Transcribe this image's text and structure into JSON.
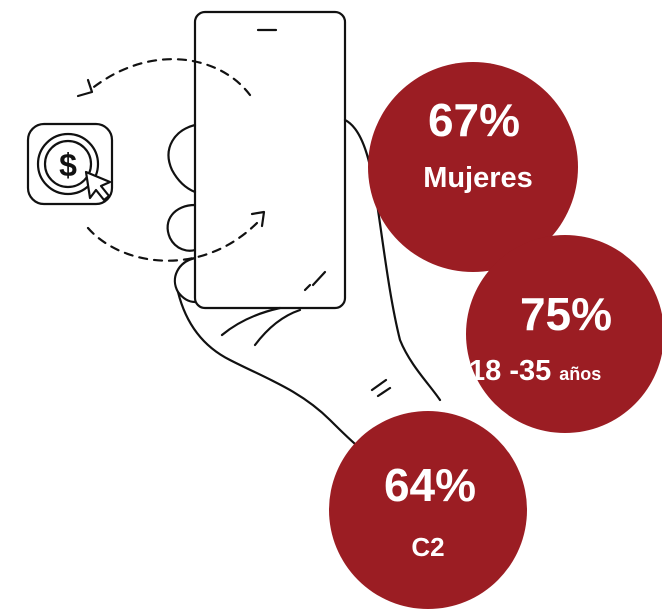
{
  "stats": [
    {
      "value": "67%",
      "label": "Mujeres"
    },
    {
      "value": "75%",
      "label": "18 -35",
      "unit": "años"
    },
    {
      "value": "64%",
      "label": "C2"
    }
  ]
}
